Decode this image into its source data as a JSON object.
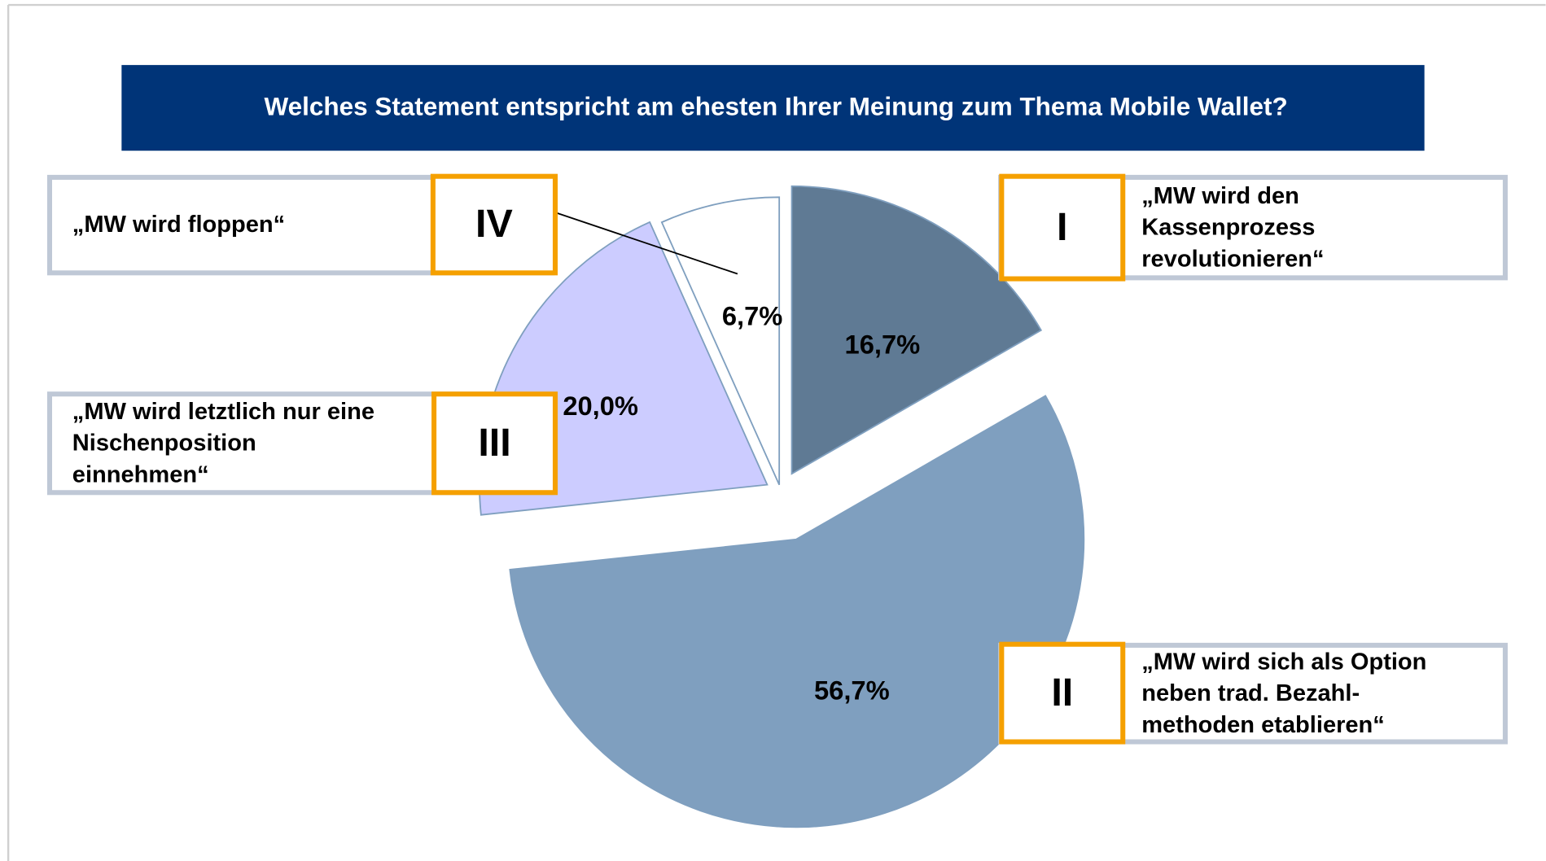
{
  "chart_data": {
    "type": "pie",
    "title": "Welches Statement entspricht am ehesten Ihrer Meinung zum Thema Mobile Wallet?",
    "numerals": [
      "I",
      "II",
      "III",
      "IV"
    ],
    "categories": [
      [
        "„MW wird den",
        "Kassenprozess",
        "revolutionieren“"
      ],
      [
        "„MW wird sich als Option",
        "neben trad. Bezahl-",
        "methoden etablieren“"
      ],
      [
        "„MW wird letztlich nur eine",
        "Nischenposition",
        "einnehmen“"
      ],
      [
        "„MW wird floppen“"
      ]
    ],
    "values": [
      16.7,
      56.7,
      20.0,
      6.7
    ],
    "value_labels": [
      "16,7%",
      "56,7%",
      "20,0%",
      "6,7%"
    ],
    "colors": [
      "#5f7a94",
      "#7f9fbf",
      "#ccccff",
      "#ffffff"
    ]
  }
}
